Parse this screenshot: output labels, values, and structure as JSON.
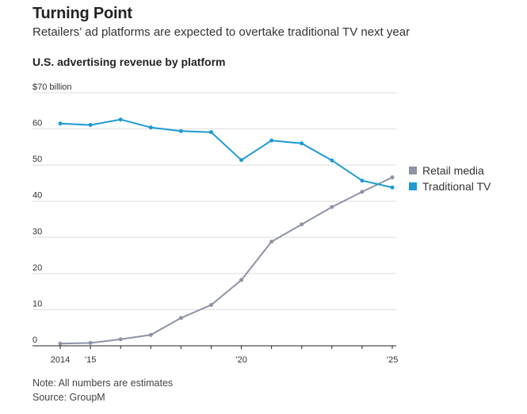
{
  "header": {
    "headline": "Turning Point",
    "dek": "Retailers’ ad platforms are expected to overtake traditional TV next year",
    "chart_title": "U.S. advertising revenue by platform"
  },
  "footer": {
    "note": "Note: All numbers are estimates",
    "source": "Source: GroupM"
  },
  "colors": {
    "retail": "#8e93a6",
    "tv": "#1d9ad6",
    "grid": "#dddddd",
    "axis": "#222222"
  },
  "chart_data": {
    "type": "line",
    "title": "U.S. advertising revenue by platform",
    "x": [
      2014,
      2015,
      2016,
      2017,
      2018,
      2019,
      2020,
      2021,
      2022,
      2023,
      2024,
      2025
    ],
    "x_tick_values": [
      2014,
      2015,
      2020,
      2025
    ],
    "x_tick_labels": [
      "2014",
      "’15",
      "’20",
      "’25"
    ],
    "y_ticks": [
      0,
      10,
      20,
      30,
      40,
      50,
      60,
      70
    ],
    "y_tick_labels": [
      "0",
      "10",
      "20",
      "30",
      "40",
      "50",
      "60",
      "$70 billion"
    ],
    "ylim": [
      0,
      70
    ],
    "grid": true,
    "legend_position": "right",
    "series": [
      {
        "name": "Retail media",
        "color": "#8e93a6",
        "values": [
          0.6,
          0.8,
          1.8,
          3.0,
          7.7,
          11.3,
          18.2,
          28.8,
          33.6,
          38.4,
          42.6,
          46.6
        ]
      },
      {
        "name": "Traditional TV",
        "color": "#1d9ad6",
        "values": [
          61.5,
          61.1,
          62.6,
          60.4,
          59.4,
          59.1,
          51.4,
          56.8,
          56.0,
          51.3,
          45.7,
          43.8
        ]
      }
    ]
  }
}
